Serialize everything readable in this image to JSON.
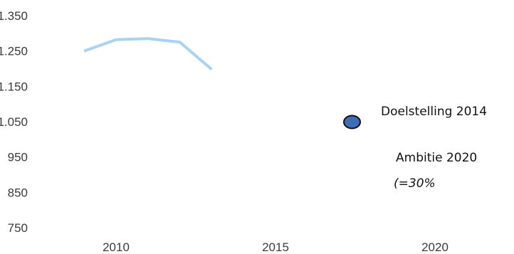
{
  "chart_data": {
    "type": "line",
    "title": "",
    "xlabel": "",
    "ylabel": "",
    "xlim": [
      2006.9,
      2022.5
    ],
    "ylim": [
      700,
      1400
    ],
    "x_ticks": [
      2010,
      2015,
      2020
    ],
    "x_tick_labels": [
      "2010",
      "2015",
      "2020"
    ],
    "y_ticks": [
      750,
      850,
      950,
      1050,
      1150,
      1250,
      1350
    ],
    "y_tick_labels": [
      "750",
      "850",
      "950",
      "1.050",
      "1.150",
      "1.250",
      "1.350"
    ],
    "grid": false,
    "legend": "none",
    "series": [
      {
        "color": "#a9d2f3",
        "points": [
          {
            "x": 2009,
            "y": 1250
          },
          {
            "x": 2010,
            "y": 1282
          },
          {
            "x": 2011,
            "y": 1285
          },
          {
            "x": 2012,
            "y": 1275
          },
          {
            "x": 2013,
            "y": 1198
          }
        ]
      }
    ],
    "markers": [
      {
        "x": 2017.4,
        "y": 1049,
        "color": "#3e6db5",
        "outline": "#111111"
      }
    ],
    "annotations": [
      {
        "text": "Doelstelling 2014"
      },
      {
        "text": "Ambitie 2020"
      },
      {
        "text": "(=30%",
        "italic": true
      }
    ]
  }
}
